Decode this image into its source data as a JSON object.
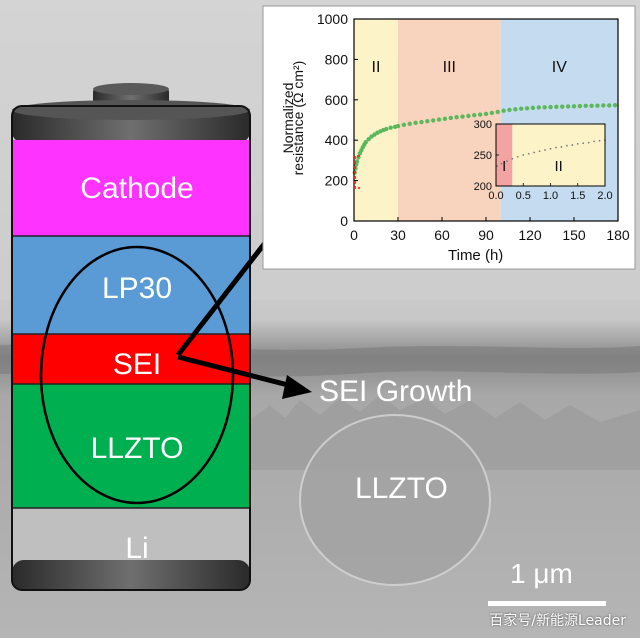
{
  "battery": {
    "layers": [
      {
        "name": "Cathode",
        "color": "#ff33ff"
      },
      {
        "name": "LP30",
        "color": "#5b9bd5"
      },
      {
        "name": "SEI",
        "color": "#ff0000"
      },
      {
        "name": "LLZTO",
        "color": "#00b050"
      },
      {
        "name": "Li",
        "color": "#bfbfbf"
      }
    ]
  },
  "sem": {
    "arrow_label": "SEI Growth",
    "region_label": "LLZTO",
    "scale_bar_label": "1 μm"
  },
  "watermark": "百家号/新能源Leader",
  "chart_data": {
    "type": "scatter",
    "xlabel": "Time (h)",
    "ylabel_line1": "Normalized",
    "ylabel_line2": "resistance (Ω cm²)",
    "xlim": [
      0,
      180
    ],
    "ylim": [
      0,
      1000
    ],
    "xticks": [
      0,
      30,
      60,
      90,
      120,
      150,
      180
    ],
    "yticks": [
      0,
      200,
      400,
      600,
      800,
      1000
    ],
    "regions": [
      {
        "label": "II",
        "x0": 0,
        "x1": 30,
        "color": "#fdf3c8"
      },
      {
        "label": "III",
        "x0": 30,
        "x1": 100,
        "color": "#f8d3bd"
      },
      {
        "label": "IV",
        "x0": 100,
        "x1": 180,
        "color": "#c5dbef"
      }
    ],
    "series": [
      {
        "color": "#5cb85c",
        "x": [
          0.5,
          1,
          1.5,
          2,
          3,
          4,
          5,
          6,
          7,
          8,
          10,
          12,
          14,
          16,
          18,
          20,
          22,
          25,
          28,
          30,
          34,
          38,
          42,
          46,
          50,
          54,
          58,
          62,
          66,
          70,
          74,
          78,
          82,
          86,
          90,
          94,
          98,
          102,
          106,
          110,
          114,
          118,
          122,
          126,
          130,
          134,
          138,
          142,
          146,
          150,
          154,
          158,
          162,
          166,
          170,
          174,
          178
        ],
        "y": [
          240,
          260,
          280,
          295,
          315,
          335,
          350,
          365,
          378,
          390,
          405,
          418,
          428,
          437,
          444,
          450,
          455,
          462,
          466,
          470,
          476,
          481,
          486,
          490,
          494,
          498,
          502,
          506,
          510,
          514,
          517,
          520,
          524,
          527,
          530,
          535,
          540,
          546,
          550,
          553,
          556,
          558,
          560,
          562,
          563,
          564,
          565,
          566,
          567,
          568,
          569,
          570,
          570,
          571,
          572,
          572,
          573
        ]
      }
    ],
    "inset": {
      "xlim": [
        0,
        2
      ],
      "ylim": [
        200,
        300
      ],
      "xticks": [
        0.0,
        0.5,
        1.0,
        1.5,
        2.0
      ],
      "yticks": [
        200,
        250,
        300
      ],
      "regions": [
        {
          "label": "I",
          "x0": 0,
          "x1": 0.3,
          "color": "#f4a3a3"
        },
        {
          "label": "II",
          "x0": 0.3,
          "x1": 2.0,
          "color": "#fdf3c8"
        }
      ],
      "series": [
        {
          "color": "#7a7a7a",
          "x": [
            0.02,
            0.1,
            0.2,
            0.3,
            0.4,
            0.5,
            0.6,
            0.7,
            0.8,
            0.9,
            1.0,
            1.1,
            1.2,
            1.3,
            1.4,
            1.5,
            1.6,
            1.7,
            1.8,
            1.9,
            2.0
          ],
          "y": [
            232,
            236,
            240,
            244,
            247,
            250,
            252,
            254,
            256,
            258,
            260,
            262,
            263,
            265,
            266,
            268,
            269,
            270,
            272,
            273,
            274
          ]
        }
      ]
    }
  }
}
